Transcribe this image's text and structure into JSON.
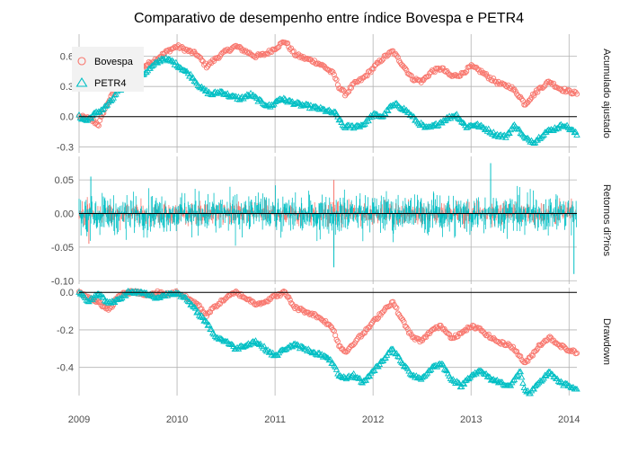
{
  "chart_data": {
    "type": "line",
    "title": "Comparativo de desempenho entre índice Bovespa e PETR4",
    "x_ticks": [
      "2009",
      "2010",
      "2011",
      "2012",
      "2013",
      "2014"
    ],
    "x_range": [
      2009.0,
      2014.08
    ],
    "legend": {
      "position": "top-left",
      "entries": [
        {
          "name": "Bovespa",
          "marker": "circle",
          "color": "#F8766D"
        },
        {
          "name": "PETR4",
          "marker": "triangle",
          "color": "#00BFC4"
        }
      ]
    },
    "panels": [
      {
        "strip_label": "Acumulado ajustado",
        "ylim": [
          -0.36,
          0.82
        ],
        "yticks": [
          -0.3,
          0.0,
          0.3,
          0.6
        ],
        "ytick_labels": [
          "-0.3",
          "0.0",
          "0.3",
          "0.6"
        ],
        "hline": 0,
        "style": "points",
        "series": [
          {
            "name": "Bovespa",
            "color": "#F8766D",
            "x": [
              2009.0,
              2009.1,
              2009.2,
              2009.25,
              2009.3,
              2009.38,
              2009.45,
              2009.55,
              2009.7,
              2009.8,
              2009.9,
              2010.0,
              2010.1,
              2010.2,
              2010.3,
              2010.4,
              2010.5,
              2010.6,
              2010.7,
              2010.8,
              2010.9,
              2011.0,
              2011.1,
              2011.2,
              2011.3,
              2011.4,
              2011.5,
              2011.6,
              2011.65,
              2011.72,
              2011.8,
              2011.9,
              2012.0,
              2012.1,
              2012.2,
              2012.3,
              2012.4,
              2012.5,
              2012.6,
              2012.7,
              2012.8,
              2012.9,
              2013.0,
              2013.1,
              2013.2,
              2013.3,
              2013.4,
              2013.5,
              2013.55,
              2013.6,
              2013.7,
              2013.8,
              2013.9,
              2014.0,
              2014.08
            ],
            "y": [
              0.0,
              -0.02,
              -0.08,
              0.05,
              0.15,
              0.28,
              0.38,
              0.45,
              0.52,
              0.58,
              0.65,
              0.7,
              0.66,
              0.62,
              0.5,
              0.58,
              0.65,
              0.7,
              0.65,
              0.6,
              0.62,
              0.68,
              0.75,
              0.62,
              0.58,
              0.55,
              0.5,
              0.42,
              0.3,
              0.22,
              0.32,
              0.38,
              0.48,
              0.58,
              0.65,
              0.52,
              0.38,
              0.35,
              0.45,
              0.48,
              0.4,
              0.42,
              0.5,
              0.45,
              0.38,
              0.32,
              0.3,
              0.2,
              0.12,
              0.18,
              0.28,
              0.35,
              0.28,
              0.25,
              0.23
            ]
          },
          {
            "name": "PETR4",
            "color": "#00BFC4",
            "x": [
              2009.0,
              2009.08,
              2009.15,
              2009.25,
              2009.32,
              2009.4,
              2009.48,
              2009.55,
              2009.65,
              2009.75,
              2009.85,
              2009.95,
              2010.05,
              2010.15,
              2010.25,
              2010.35,
              2010.45,
              2010.55,
              2010.65,
              2010.75,
              2010.85,
              2010.95,
              2011.05,
              2011.15,
              2011.25,
              2011.35,
              2011.45,
              2011.55,
              2011.62,
              2011.7,
              2011.8,
              2011.9,
              2012.0,
              2012.1,
              2012.18,
              2012.25,
              2012.35,
              2012.45,
              2012.55,
              2012.65,
              2012.75,
              2012.85,
              2012.95,
              2013.05,
              2013.15,
              2013.25,
              2013.35,
              2013.45,
              2013.55,
              2013.65,
              2013.75,
              2013.85,
              2013.95,
              2014.05,
              2014.08
            ],
            "y": [
              0.0,
              -0.04,
              0.02,
              0.08,
              0.15,
              0.25,
              0.33,
              0.38,
              0.42,
              0.5,
              0.58,
              0.55,
              0.48,
              0.4,
              0.28,
              0.22,
              0.25,
              0.2,
              0.18,
              0.22,
              0.15,
              0.1,
              0.18,
              0.15,
              0.12,
              0.1,
              0.08,
              0.05,
              0.03,
              -0.1,
              -0.1,
              -0.08,
              0.02,
              0.0,
              0.1,
              0.12,
              0.05,
              -0.05,
              -0.12,
              -0.08,
              -0.02,
              0.02,
              -0.1,
              -0.08,
              -0.12,
              -0.18,
              -0.2,
              -0.08,
              -0.22,
              -0.25,
              -0.16,
              -0.12,
              -0.08,
              -0.15,
              -0.18
            ]
          }
        ]
      },
      {
        "strip_label": "Retornos di?rios",
        "ylim": [
          -0.105,
          0.085
        ],
        "yticks": [
          -0.1,
          -0.05,
          0.0,
          0.05
        ],
        "ytick_labels": [
          "-0.10",
          "-0.05",
          "0.00",
          "0.05"
        ],
        "hline": 0,
        "style": "spikes",
        "series": [
          {
            "name": "Bovespa",
            "color": "#F8766D",
            "x_start": 2009.0,
            "x_end": 2014.08,
            "amplitude": 0.03,
            "extremes": [
              [
                2011.6,
                -0.055
              ],
              [
                2011.6,
                0.05
              ],
              [
                2009.1,
                -0.045
              ]
            ]
          },
          {
            "name": "PETR4",
            "color": "#00BFC4",
            "x_start": 2009.0,
            "x_end": 2014.08,
            "amplitude": 0.055,
            "extremes": [
              [
                2013.2,
                0.075
              ],
              [
                2014.05,
                -0.09
              ],
              [
                2011.6,
                -0.08
              ],
              [
                2009.12,
                0.055
              ]
            ]
          }
        ]
      },
      {
        "strip_label": "Drawdown",
        "ylim": [
          -0.55,
          0.025
        ],
        "yticks": [
          -0.4,
          -0.2,
          0.0
        ],
        "ytick_labels": [
          "-0.4",
          "-0.2",
          "0.0"
        ],
        "hline": 0,
        "style": "points",
        "series": [
          {
            "name": "Bovespa",
            "color": "#F8766D",
            "x": [
              2009.0,
              2009.1,
              2009.2,
              2009.3,
              2009.4,
              2009.5,
              2009.6,
              2009.7,
              2009.8,
              2009.9,
              2010.0,
              2010.1,
              2010.2,
              2010.3,
              2010.4,
              2010.5,
              2010.6,
              2010.7,
              2010.8,
              2010.9,
              2011.0,
              2011.1,
              2011.2,
              2011.3,
              2011.4,
              2011.5,
              2011.6,
              2011.65,
              2011.72,
              2011.8,
              2011.9,
              2012.0,
              2012.1,
              2012.2,
              2012.3,
              2012.4,
              2012.5,
              2012.6,
              2012.7,
              2012.8,
              2012.9,
              2013.0,
              2013.1,
              2013.2,
              2013.3,
              2013.4,
              2013.5,
              2013.55,
              2013.6,
              2013.7,
              2013.8,
              2013.9,
              2014.0,
              2014.08
            ],
            "y": [
              0.0,
              -0.03,
              -0.05,
              -0.1,
              -0.02,
              0.0,
              0.0,
              -0.02,
              0.0,
              -0.01,
              0.0,
              -0.03,
              -0.06,
              -0.12,
              -0.07,
              -0.03,
              0.0,
              -0.03,
              -0.06,
              -0.05,
              -0.02,
              0.0,
              -0.08,
              -0.1,
              -0.12,
              -0.15,
              -0.2,
              -0.28,
              -0.32,
              -0.27,
              -0.22,
              -0.16,
              -0.1,
              -0.05,
              -0.15,
              -0.24,
              -0.26,
              -0.2,
              -0.18,
              -0.24,
              -0.22,
              -0.18,
              -0.2,
              -0.24,
              -0.27,
              -0.28,
              -0.34,
              -0.38,
              -0.35,
              -0.28,
              -0.24,
              -0.28,
              -0.31,
              -0.32
            ]
          },
          {
            "name": "PETR4",
            "color": "#00BFC4",
            "x": [
              2009.0,
              2009.1,
              2009.2,
              2009.3,
              2009.4,
              2009.5,
              2009.6,
              2009.7,
              2009.8,
              2009.9,
              2010.0,
              2010.1,
              2010.2,
              2010.3,
              2010.4,
              2010.5,
              2010.6,
              2010.7,
              2010.8,
              2010.9,
              2011.0,
              2011.1,
              2011.2,
              2011.3,
              2011.4,
              2011.5,
              2011.6,
              2011.65,
              2011.72,
              2011.8,
              2011.9,
              2012.0,
              2012.1,
              2012.2,
              2012.3,
              2012.4,
              2012.5,
              2012.6,
              2012.7,
              2012.8,
              2012.9,
              2013.0,
              2013.1,
              2013.2,
              2013.3,
              2013.4,
              2013.5,
              2013.55,
              2013.6,
              2013.7,
              2013.8,
              2013.9,
              2014.0,
              2014.08
            ],
            "y": [
              0.0,
              -0.05,
              0.0,
              -0.06,
              -0.04,
              0.0,
              0.0,
              -0.01,
              -0.03,
              -0.01,
              0.0,
              -0.04,
              -0.1,
              -0.16,
              -0.24,
              -0.26,
              -0.3,
              -0.28,
              -0.26,
              -0.3,
              -0.34,
              -0.3,
              -0.28,
              -0.3,
              -0.32,
              -0.34,
              -0.38,
              -0.45,
              -0.46,
              -0.44,
              -0.48,
              -0.42,
              -0.36,
              -0.3,
              -0.38,
              -0.44,
              -0.46,
              -0.4,
              -0.38,
              -0.46,
              -0.5,
              -0.44,
              -0.42,
              -0.46,
              -0.48,
              -0.5,
              -0.42,
              -0.52,
              -0.54,
              -0.48,
              -0.42,
              -0.48,
              -0.5,
              -0.51
            ]
          }
        ]
      }
    ]
  }
}
